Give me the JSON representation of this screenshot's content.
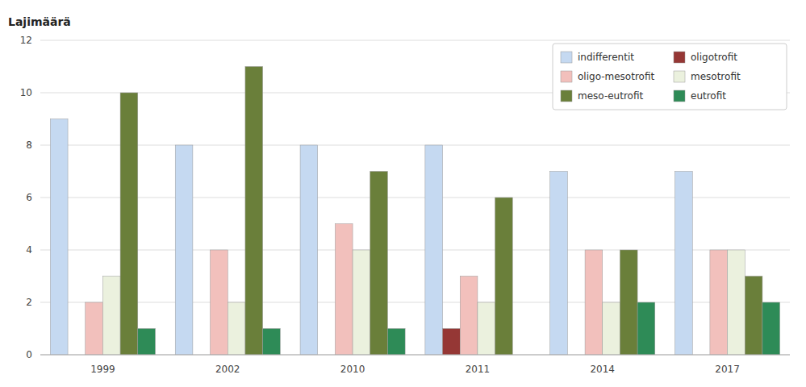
{
  "chart_data": {
    "type": "bar",
    "ylabel": "Lajimäärä",
    "categories": [
      "1999",
      "2002",
      "2010",
      "2011",
      "2014",
      "2017"
    ],
    "series": [
      {
        "name": "indifferentit",
        "color": "#c5d9f1",
        "values": [
          9,
          8,
          8,
          8,
          7,
          7
        ]
      },
      {
        "name": "oligotrofit",
        "color": "#953735",
        "values": [
          0,
          0,
          0,
          1,
          0,
          0
        ]
      },
      {
        "name": "oligo-mesotrofit",
        "color": "#f2c0bc",
        "values": [
          2,
          4,
          5,
          3,
          4,
          4
        ]
      },
      {
        "name": "mesotrofit",
        "color": "#ebf1de",
        "values": [
          3,
          2,
          4,
          2,
          2,
          4
        ]
      },
      {
        "name": "meso-eutrofit",
        "color": "#6a7f3a",
        "values": [
          10,
          11,
          7,
          6,
          4,
          3
        ]
      },
      {
        "name": "eutrofit",
        "color": "#2e8b57",
        "values": [
          1,
          1,
          1,
          0,
          2,
          2
        ]
      }
    ],
    "ylim": [
      0,
      12
    ],
    "yticks": [
      0,
      2,
      4,
      6,
      8,
      10,
      12
    ],
    "grid": true,
    "legend": "upper right"
  }
}
